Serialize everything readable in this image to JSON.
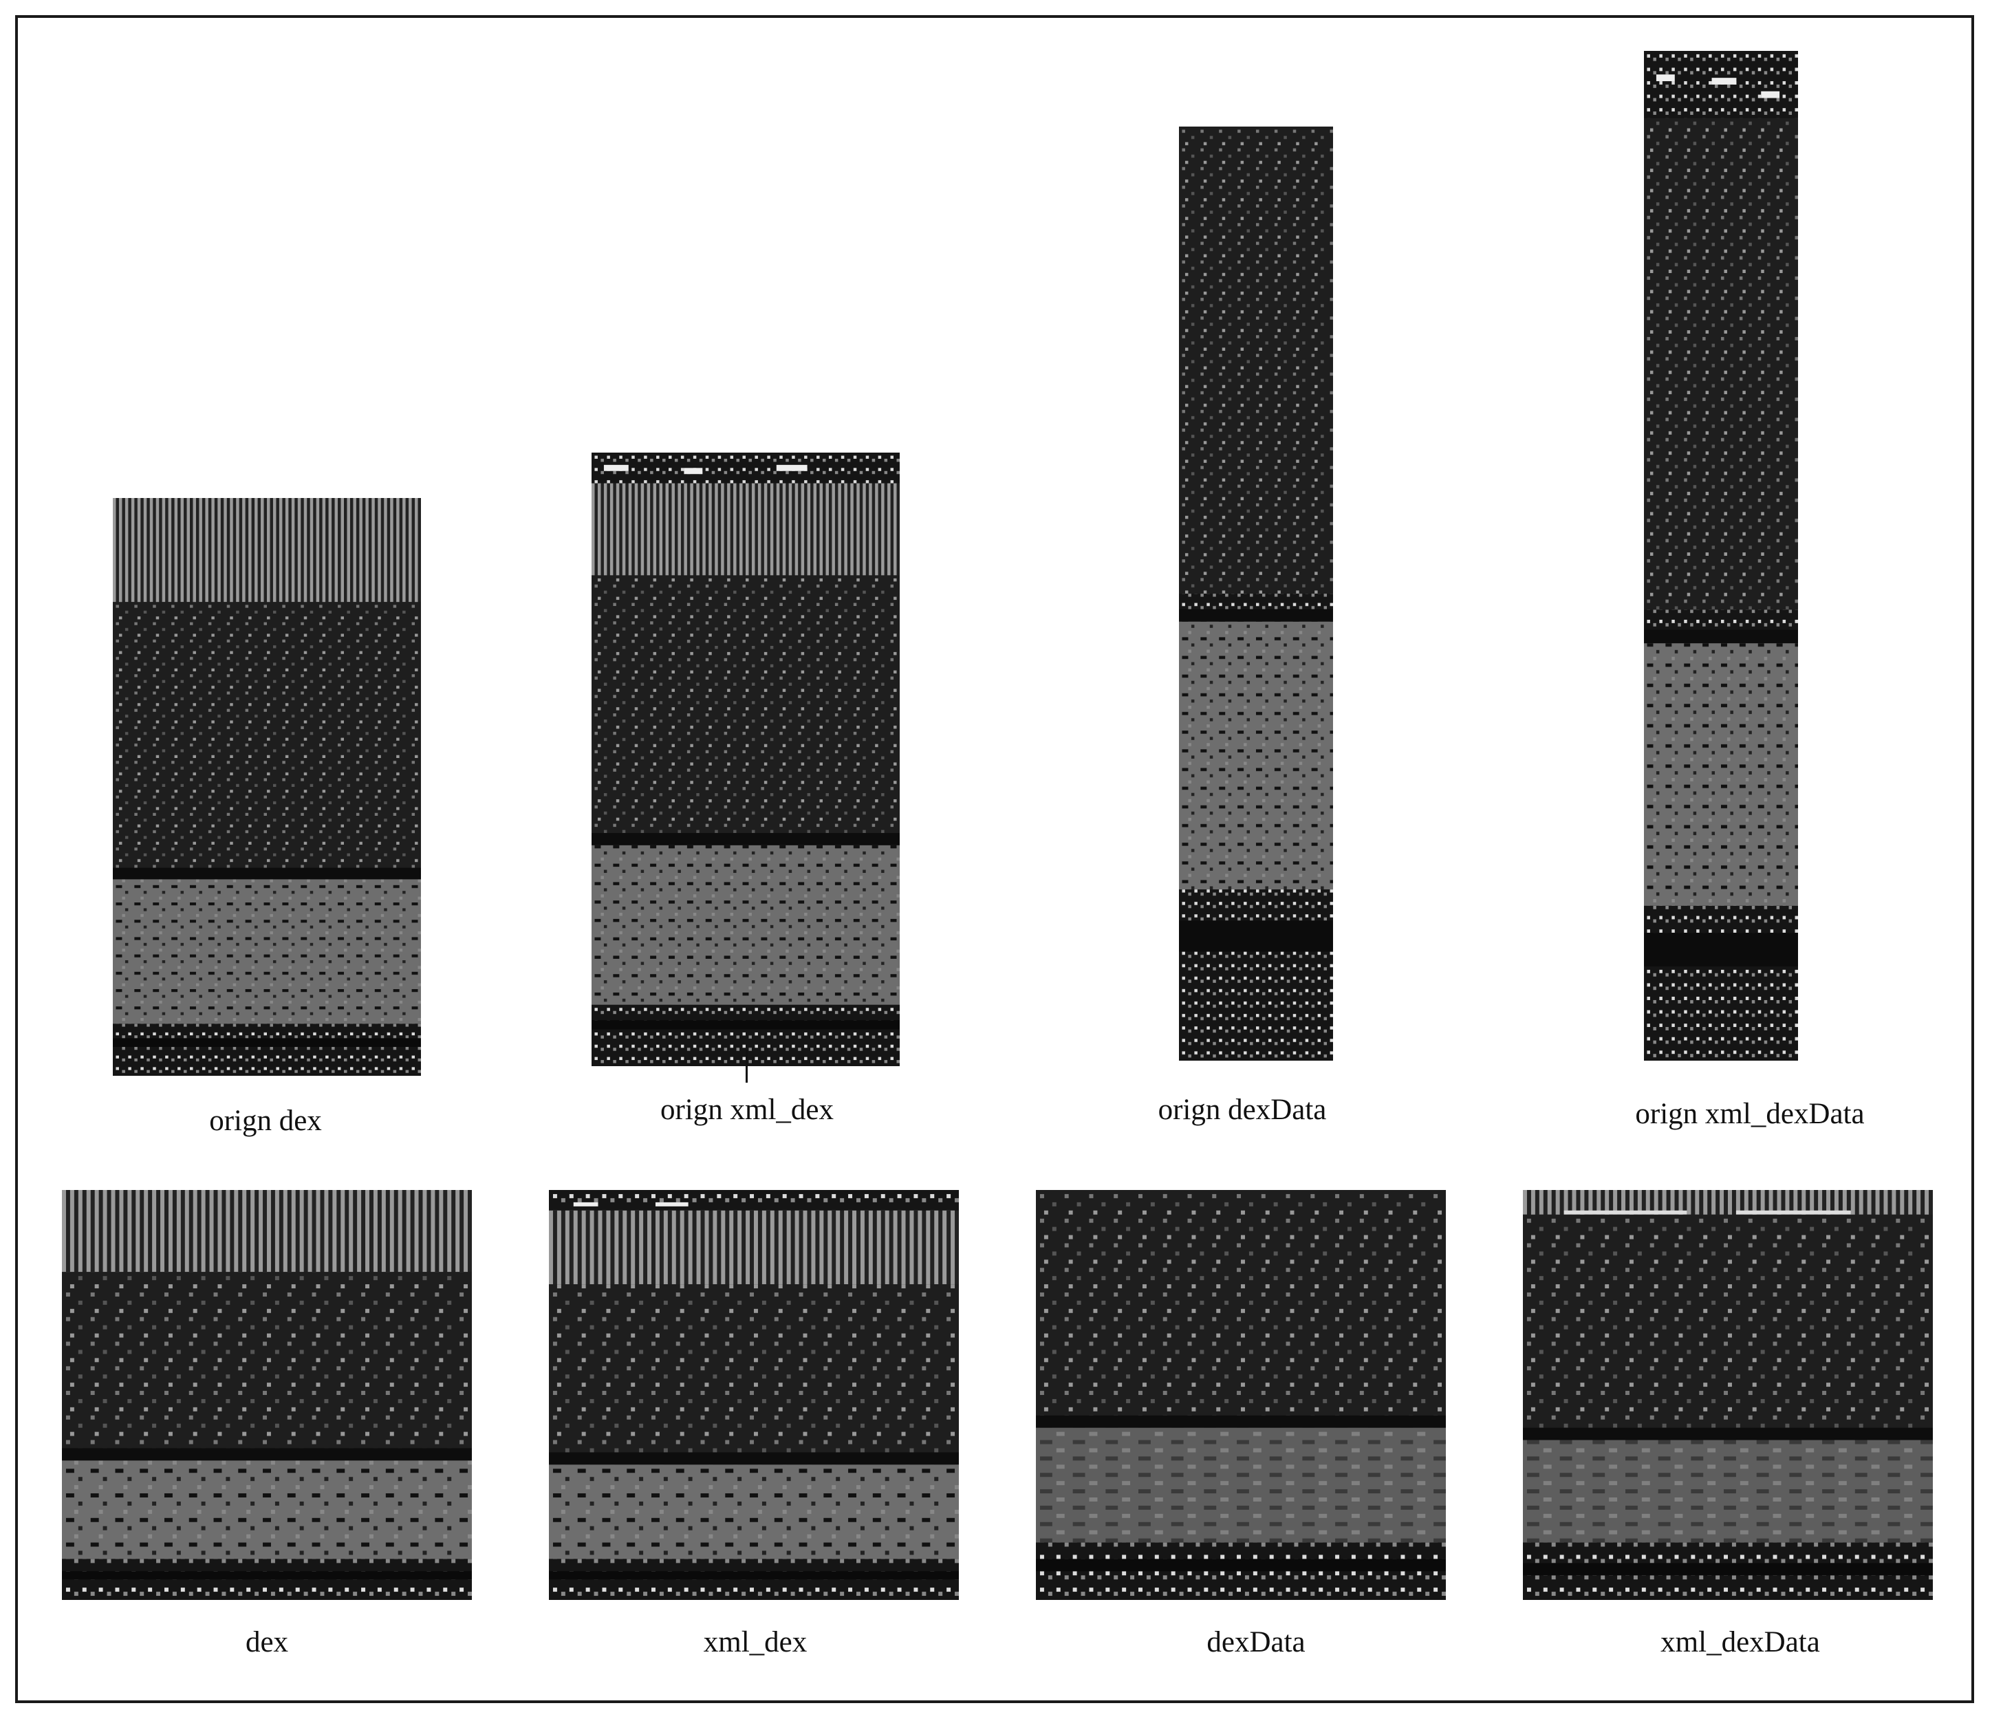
{
  "panels": {
    "top": [
      {
        "caption": "orign dex"
      },
      {
        "caption": "orign xml_dex"
      },
      {
        "caption": "orign dexData"
      },
      {
        "caption": "orign xml_dexData"
      }
    ],
    "bottom": [
      {
        "caption": "dex"
      },
      {
        "caption": "xml_dex"
      },
      {
        "caption": "dexData"
      },
      {
        "caption": "xml_dexData"
      }
    ]
  },
  "colors": {
    "frame": "#1a1a1a",
    "dark_region": "#1b1b1b",
    "mid_gray_region": "#6e6e6e",
    "bright_specks": "#e6e6e6"
  }
}
